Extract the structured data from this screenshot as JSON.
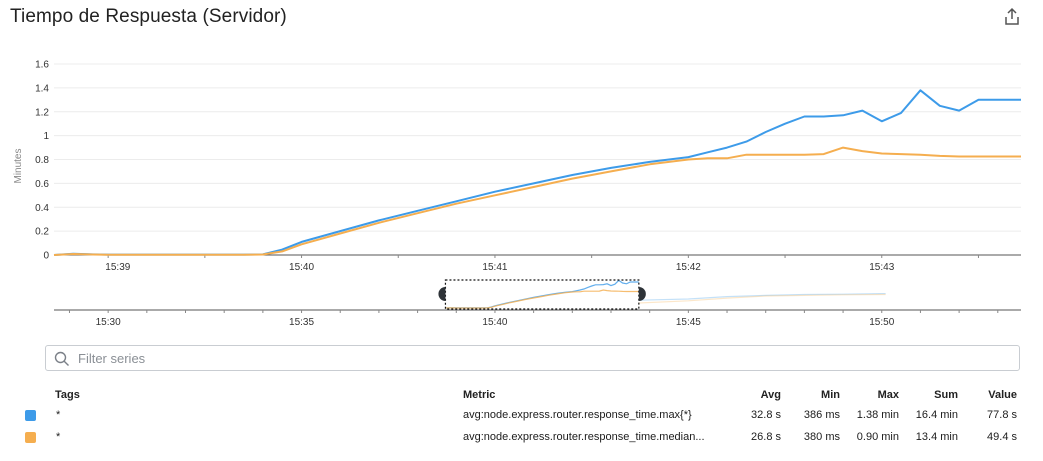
{
  "widget": {
    "title": "Tiempo de Respuesta (Servidor)",
    "export_icon": "share-export-icon"
  },
  "chart_data": {
    "type": "line",
    "ylabel": "Minutes",
    "ylim": [
      0,
      1.6
    ],
    "yticks": [
      "0",
      "0.2",
      "0.4",
      "0.6",
      "0.8",
      "1",
      "1.2",
      "1.4",
      "1.6"
    ],
    "xticks": [
      {
        "label": "15:39",
        "t": 39.05
      },
      {
        "label": "15:40",
        "t": 40.0
      },
      {
        "label": "15:41",
        "t": 41.0
      },
      {
        "label": "15:42",
        "t": 42.0
      },
      {
        "label": "15:43",
        "t": 43.0
      }
    ],
    "xlim": [
      38.72,
      43.72
    ],
    "series": [
      {
        "name": "avg:node.express.router.response_time.max{*}",
        "color": "#3d9be9",
        "x": [
          38.72,
          38.82,
          38.92,
          39.0,
          39.2,
          39.4,
          39.6,
          39.7,
          39.8,
          39.9,
          40.0,
          40.2,
          40.4,
          40.6,
          40.8,
          41.0,
          41.2,
          41.4,
          41.6,
          41.8,
          42.0,
          42.1,
          42.2,
          42.3,
          42.4,
          42.5,
          42.6,
          42.7,
          42.8,
          42.9,
          43.0,
          43.1,
          43.2,
          43.3,
          43.4,
          43.5,
          43.6,
          43.72
        ],
        "y": [
          0.0,
          0.01,
          0.005,
          0.003,
          0.003,
          0.003,
          0.003,
          0.003,
          0.005,
          0.045,
          0.11,
          0.2,
          0.29,
          0.37,
          0.45,
          0.53,
          0.6,
          0.67,
          0.73,
          0.78,
          0.82,
          0.86,
          0.9,
          0.95,
          1.03,
          1.1,
          1.16,
          1.16,
          1.17,
          1.21,
          1.12,
          1.19,
          1.38,
          1.25,
          1.21,
          1.3,
          1.3,
          1.3
        ]
      },
      {
        "name": "avg:node.express.router.response_time.median...",
        "color": "#f5ae4f",
        "x": [
          38.72,
          38.82,
          38.92,
          39.0,
          39.2,
          39.4,
          39.6,
          39.7,
          39.8,
          39.9,
          40.0,
          40.2,
          40.4,
          40.6,
          40.8,
          41.0,
          41.2,
          41.4,
          41.6,
          41.8,
          42.0,
          42.1,
          42.2,
          42.3,
          42.4,
          42.5,
          42.6,
          42.7,
          42.8,
          42.9,
          43.0,
          43.1,
          43.2,
          43.3,
          43.4,
          43.5,
          43.6,
          43.72
        ],
        "y": [
          0.0,
          0.008,
          0.004,
          0.002,
          0.002,
          0.002,
          0.002,
          0.002,
          0.004,
          0.03,
          0.09,
          0.18,
          0.27,
          0.35,
          0.43,
          0.5,
          0.57,
          0.64,
          0.7,
          0.76,
          0.8,
          0.81,
          0.81,
          0.84,
          0.84,
          0.84,
          0.84,
          0.845,
          0.9,
          0.87,
          0.85,
          0.845,
          0.84,
          0.83,
          0.825,
          0.825,
          0.825,
          0.825
        ]
      }
    ],
    "grid": true,
    "legend": "table-below"
  },
  "overview": {
    "xticks": [
      {
        "label": "15:30",
        "t": 30.0
      },
      {
        "label": "15:35",
        "t": 35.0
      },
      {
        "label": "15:40",
        "t": 40.0
      },
      {
        "label": "15:45",
        "t": 45.0
      },
      {
        "label": "15:50",
        "t": 50.0
      }
    ],
    "xlim": [
      28.6,
      53.6
    ],
    "selection": [
      38.72,
      43.72
    ]
  },
  "filter": {
    "placeholder": "Filter series",
    "value": ""
  },
  "table": {
    "headers": {
      "tags": "Tags",
      "metric": "Metric",
      "avg": "Avg",
      "min": "Min",
      "max": "Max",
      "sum": "Sum",
      "value": "Value"
    },
    "rows": [
      {
        "color": "#3d9be9",
        "tags": "*",
        "metric": "avg:node.express.router.response_time.max{*}",
        "avg": "32.8 s",
        "min": "386 ms",
        "max": "1.38 min",
        "sum": "16.4 min",
        "value": "77.8 s"
      },
      {
        "color": "#f5ae4f",
        "tags": "*",
        "metric": "avg:node.express.router.response_time.median...",
        "avg": "26.8 s",
        "min": "380 ms",
        "max": "0.90 min",
        "sum": "13.4 min",
        "value": "49.4 s"
      }
    ]
  }
}
